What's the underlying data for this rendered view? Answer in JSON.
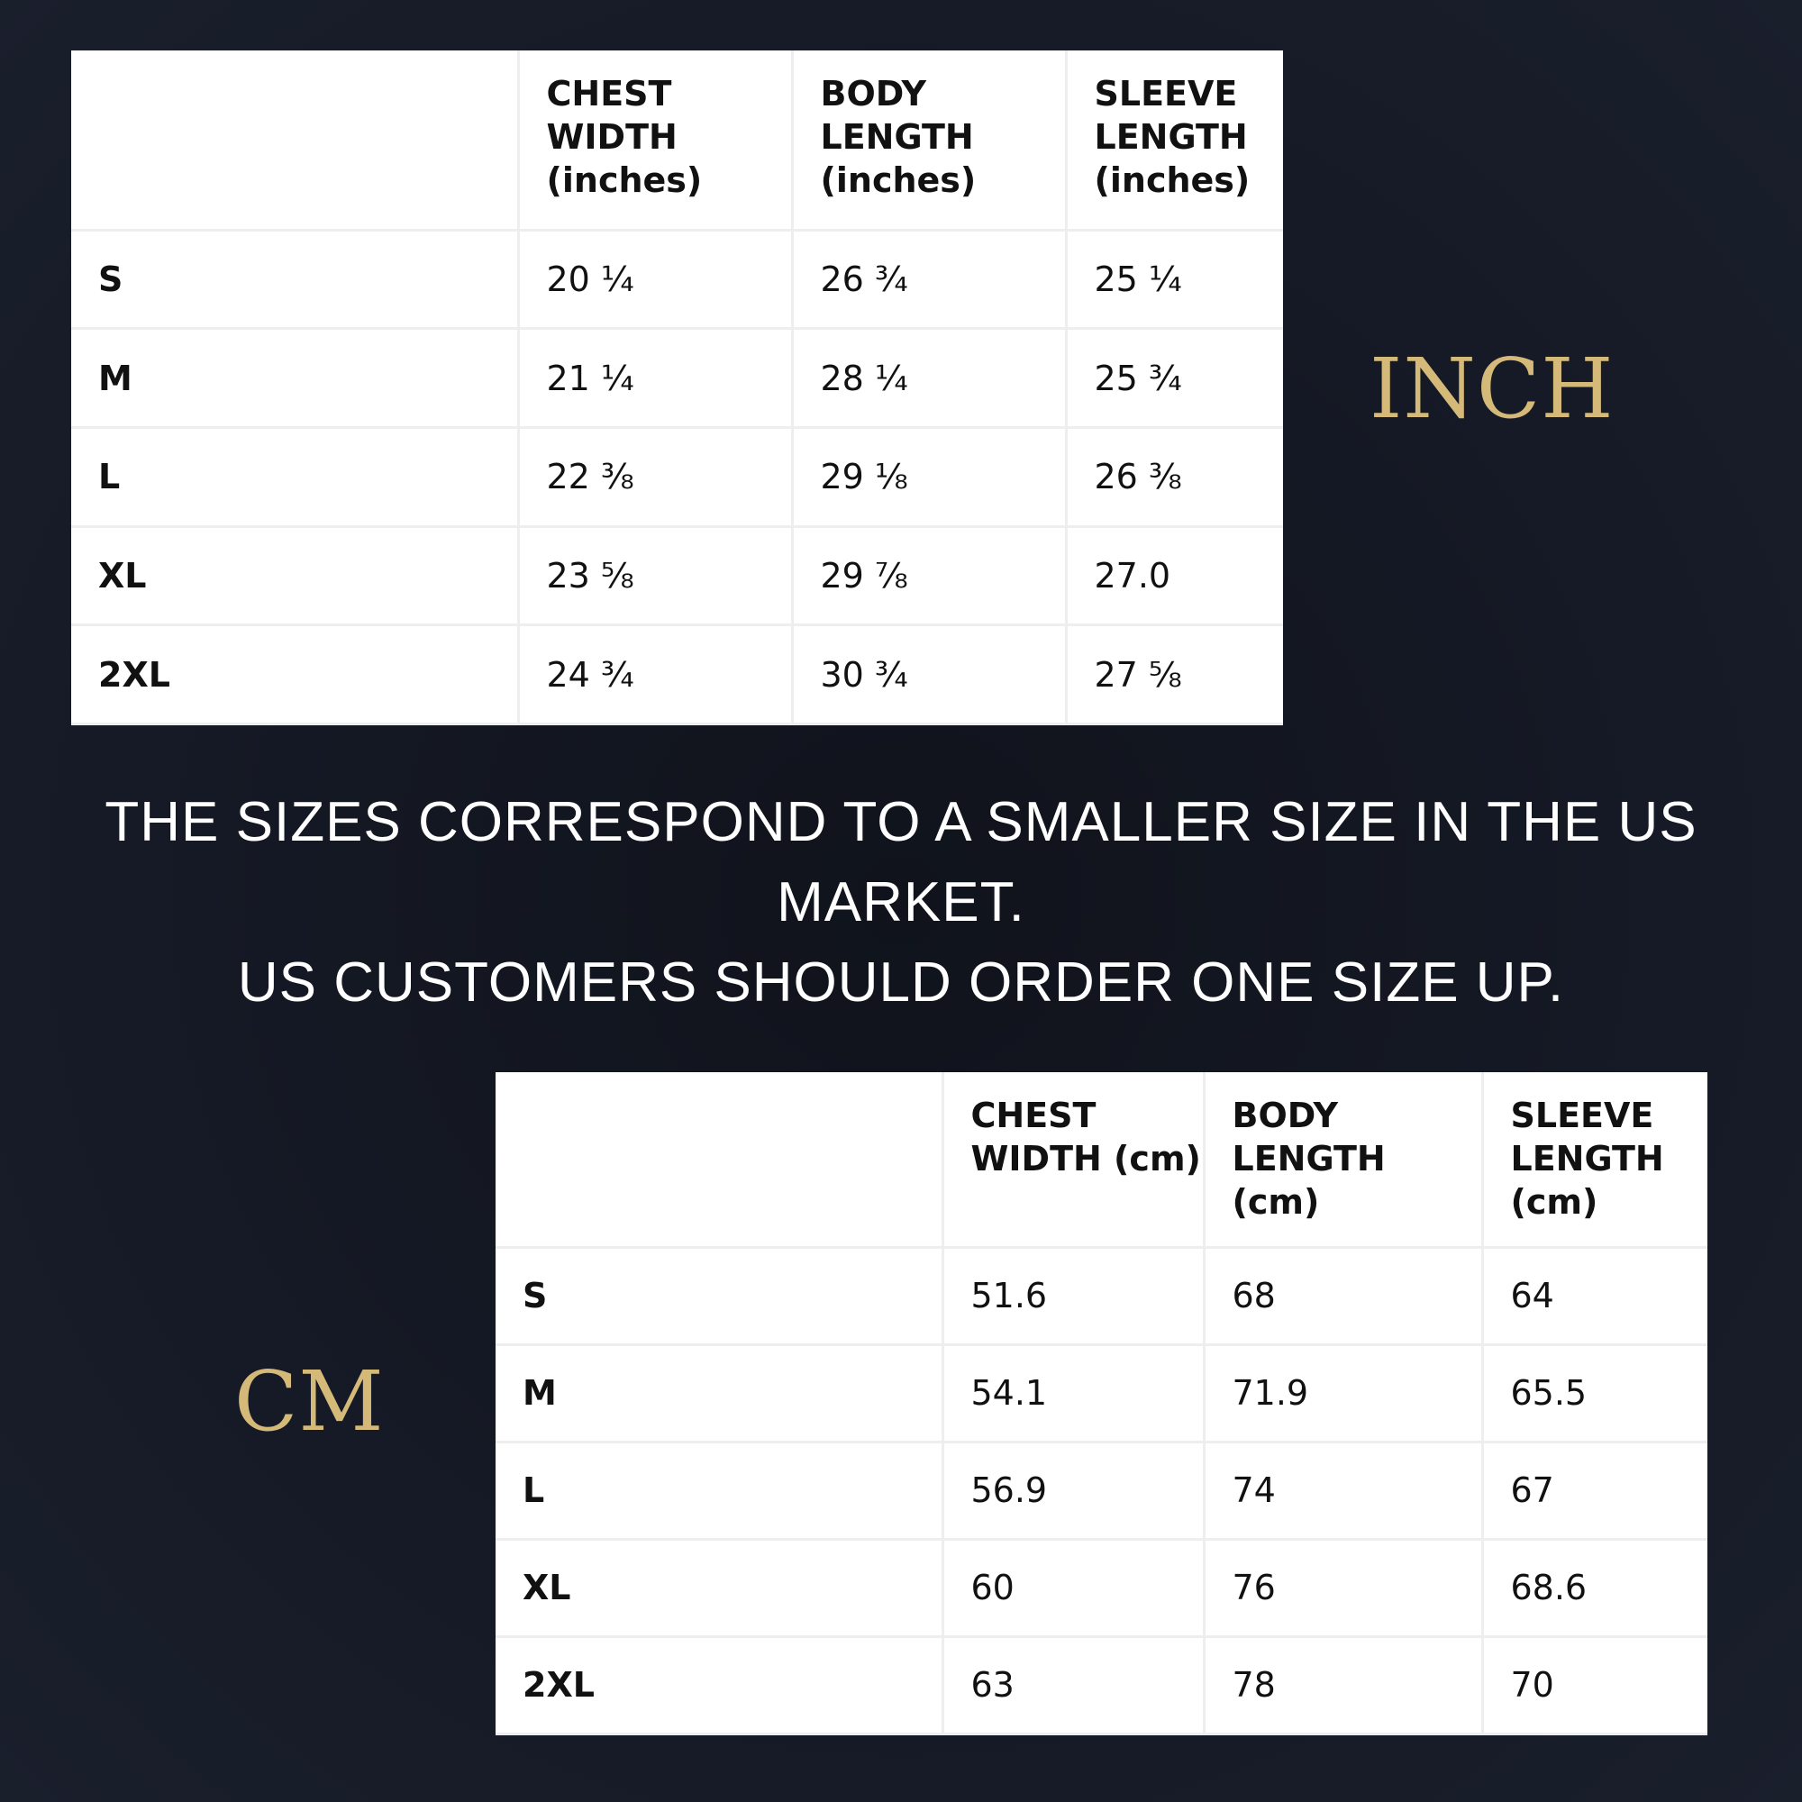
{
  "inch_chart": {
    "label": "INCH",
    "columns": [
      "",
      "CHEST WIDTH (inches)",
      "BODY LENGTH (inches)",
      "SLEEVE LENGTH (inches)"
    ],
    "rows": [
      {
        "size": "S",
        "chest": "20 ¼",
        "body": "26 ¾",
        "sleeve": "25 ¼"
      },
      {
        "size": "M",
        "chest": "21 ¼",
        "body": "28 ¼",
        "sleeve": "25 ¾"
      },
      {
        "size": "L",
        "chest": "22 ⅜",
        "body": "29 ⅛",
        "sleeve": "26 ⅜"
      },
      {
        "size": "XL",
        "chest": "23 ⅝",
        "body": "29 ⅞",
        "sleeve": "27.0"
      },
      {
        "size": "2XL",
        "chest": "24 ¾",
        "body": "30 ¾",
        "sleeve": "27 ⅝"
      }
    ]
  },
  "notice": {
    "line1": "THE SIZES CORRESPOND TO A SMALLER SIZE IN THE US",
    "line2": "MARKET.",
    "line3": "US CUSTOMERS SHOULD ORDER ONE SIZE UP."
  },
  "cm_chart": {
    "label": "CM",
    "columns": [
      "",
      "CHEST WIDTH (cm)",
      "BODY LENGTH (cm)",
      "SLEEVE LENGTH (cm)"
    ],
    "rows": [
      {
        "size": "S",
        "chest": "51.6",
        "body": "68",
        "sleeve": "64"
      },
      {
        "size": "M",
        "chest": "54.1",
        "body": "71.9",
        "sleeve": "65.5"
      },
      {
        "size": "L",
        "chest": "56.9",
        "body": "74",
        "sleeve": "67"
      },
      {
        "size": "XL",
        "chest": "60",
        "body": "76",
        "sleeve": "68.6"
      },
      {
        "size": "2XL",
        "chest": "63",
        "body": "78",
        "sleeve": "70"
      }
    ]
  },
  "colors": {
    "background": "#151925",
    "label_gold": "#d4b979",
    "notice_text": "#ffffff",
    "table_bg": "#ffffff",
    "table_border": "#eceeef"
  }
}
